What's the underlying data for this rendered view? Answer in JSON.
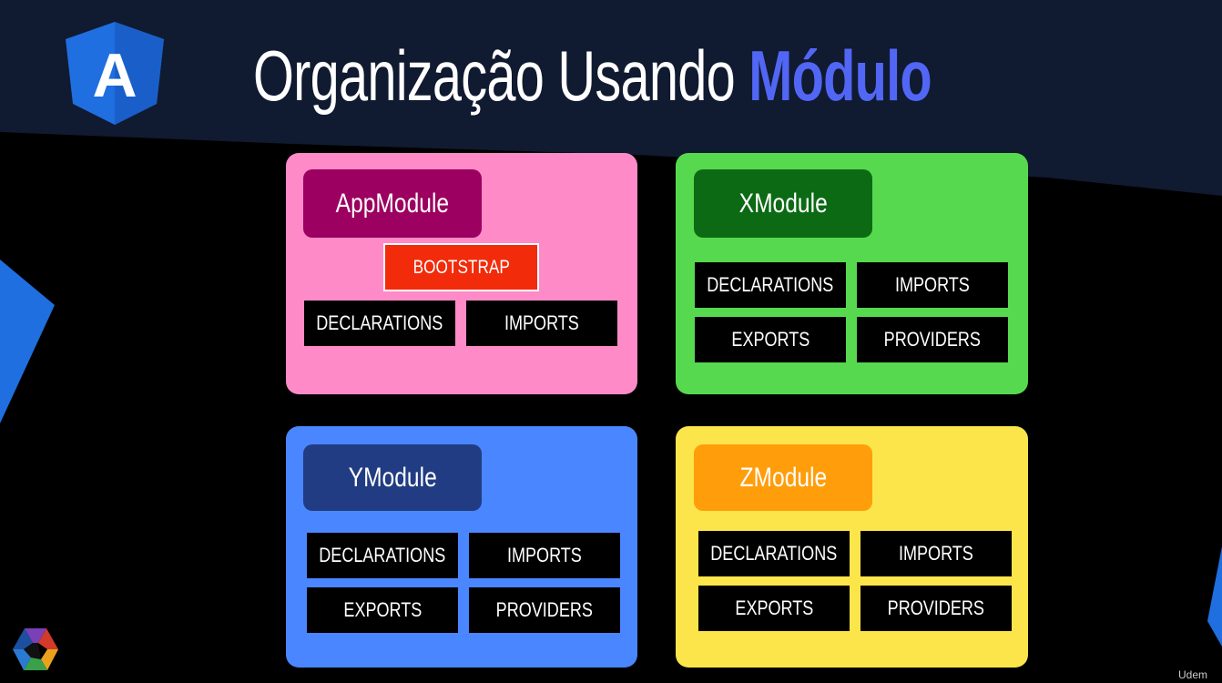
{
  "slide": {
    "title_main": "Organização Usando ",
    "title_accent": "Módulo",
    "logo_letter": "A",
    "accent_color": "#5266f5",
    "watermark": "Udem"
  },
  "modules": {
    "app": {
      "title": "AppModule",
      "bootstrap": "BOOTSTRAP",
      "declarations": "DECLARATIONS",
      "imports": "IMPORTS",
      "color": "#ff8ac8",
      "title_color": "#9c0060"
    },
    "x": {
      "title": "XModule",
      "declarations": "DECLARATIONS",
      "imports": "IMPORTS",
      "exports": "EXPORTS",
      "providers": "PROVIDERS",
      "color": "#57d94f",
      "title_color": "#0c6a15"
    },
    "y": {
      "title": "YModule",
      "declarations": "DECLARATIONS",
      "imports": "IMPORTS",
      "exports": "EXPORTS",
      "providers": "PROVIDERS",
      "color": "#4a86ff",
      "title_color": "#213c82"
    },
    "z": {
      "title": "ZModule",
      "declarations": "DECLARATIONS",
      "imports": "IMPORTS",
      "exports": "EXPORTS",
      "providers": "PROVIDERS",
      "color": "#fbe54a",
      "title_color": "#ff9d0a"
    }
  }
}
